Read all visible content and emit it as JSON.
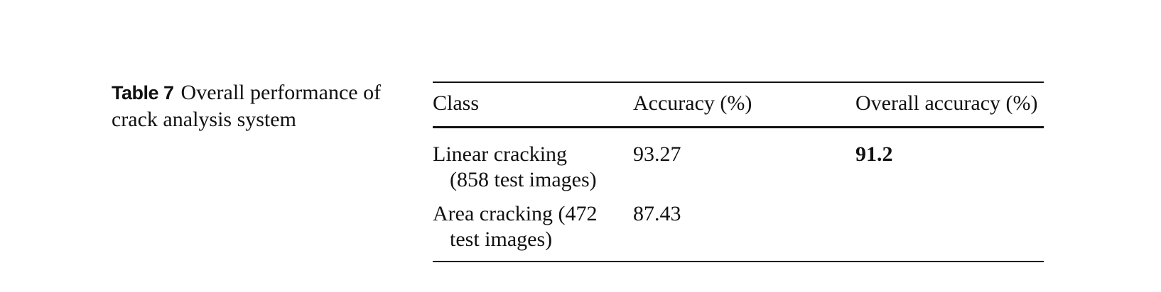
{
  "caption": {
    "label": "Table 7",
    "title_line1": "Overall performance of",
    "title_line2": "crack analysis system"
  },
  "table": {
    "headers": [
      "Class",
      "Accuracy (%)",
      "Overall accuracy (%)"
    ],
    "rows": [
      {
        "class_line1": "Linear cracking",
        "class_line2": "(858 test images)",
        "accuracy": "93.27",
        "overall": "91.2"
      },
      {
        "class_line1": "Area cracking (472",
        "class_line2": "test images)",
        "accuracy": "87.43",
        "overall": ""
      }
    ]
  }
}
